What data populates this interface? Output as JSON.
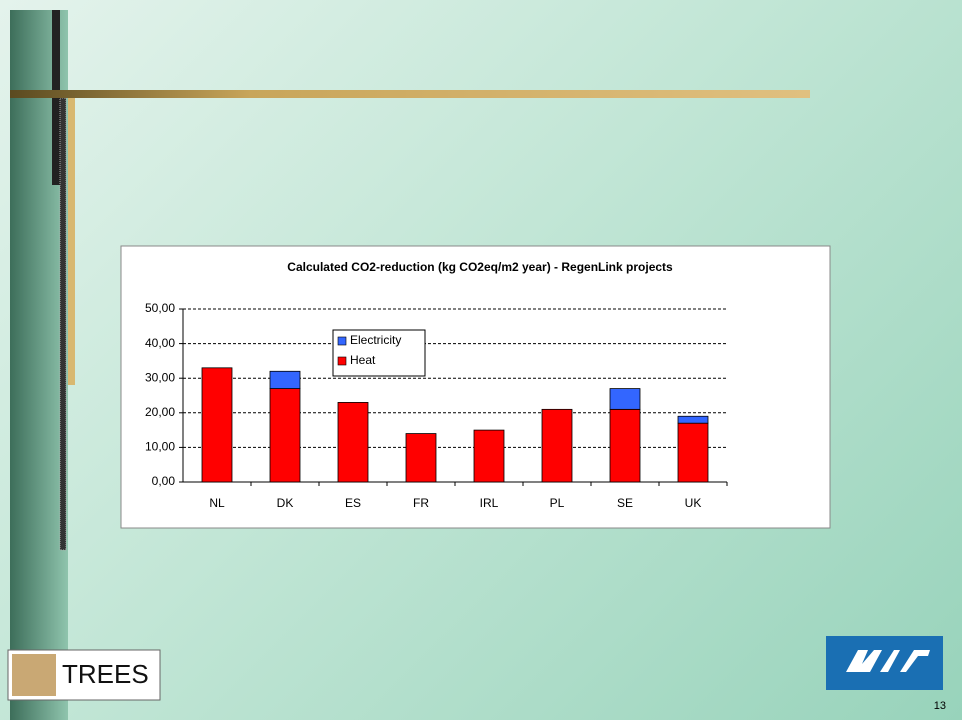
{
  "chart_data": {
    "type": "stacked_bar",
    "title": "Calculated CO2-reduction (kg CO2eq/m2 year) - RegenLink projects",
    "categories": [
      "NL",
      "DK",
      "ES",
      "FR",
      "IRL",
      "PL",
      "SE",
      "UK"
    ],
    "series": [
      {
        "name": "Heat",
        "color": "#ff0000",
        "values": [
          33,
          27,
          23,
          14,
          15,
          21,
          21,
          17
        ]
      },
      {
        "name": "Electricity",
        "color": "#3366ff",
        "values": [
          0,
          5,
          0,
          0,
          0,
          0,
          6,
          2
        ]
      }
    ],
    "ylim": [
      0,
      50
    ],
    "yticks": [
      {
        "value": 0,
        "label": "0,00"
      },
      {
        "value": 10,
        "label": "10,00"
      },
      {
        "value": 20,
        "label": "20,00"
      },
      {
        "value": 30,
        "label": "30,00"
      },
      {
        "value": 40,
        "label": "40,00"
      },
      {
        "value": 50,
        "label": "50,00"
      }
    ],
    "grid": true
  },
  "footer": {
    "logo_text": "TREES",
    "page_number": "13"
  }
}
